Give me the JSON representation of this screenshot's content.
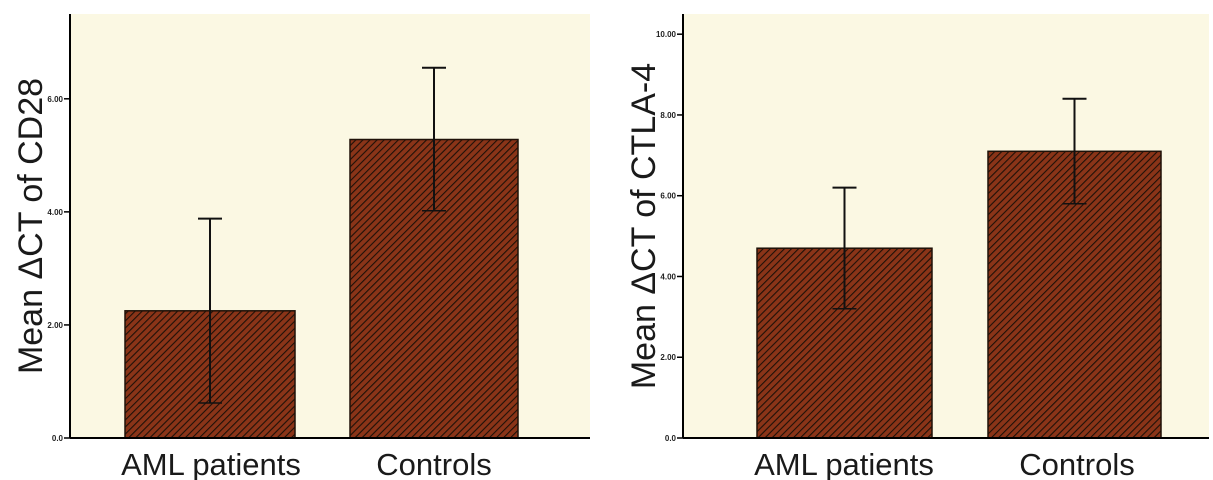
{
  "colors": {
    "plot_background": "#fbf8e3",
    "bar_fill": "#8a3418",
    "hatch": "#1e1108",
    "axis": "#000000"
  },
  "chart_data": [
    {
      "type": "bar",
      "ylabel": "Mean ΔCT of CD28",
      "categories": [
        "AML patients",
        "Controls"
      ],
      "values": [
        2.25,
        5.28
      ],
      "error_upper": [
        3.88,
        6.55
      ],
      "error_lower": [
        0.62,
        4.02
      ],
      "ylim": [
        0,
        7.5
      ],
      "yticks": [
        0,
        2,
        4,
        6
      ],
      "ytick_labels": [
        "0.0",
        "2.00",
        "4.00",
        "6.00"
      ],
      "grid": false
    },
    {
      "type": "bar",
      "ylabel": "Mean ΔCT of CTLA-4",
      "categories": [
        "AML patients",
        "Controls"
      ],
      "values": [
        4.7,
        7.1
      ],
      "error_upper": [
        6.2,
        8.4
      ],
      "error_lower": [
        3.2,
        5.8
      ],
      "ylim": [
        0,
        10.5
      ],
      "yticks": [
        0,
        2,
        4,
        6,
        8,
        10
      ],
      "ytick_labels": [
        "0.0",
        "2.00",
        "4.00",
        "6.00",
        "8.00",
        "10.00"
      ],
      "grid": false
    }
  ]
}
